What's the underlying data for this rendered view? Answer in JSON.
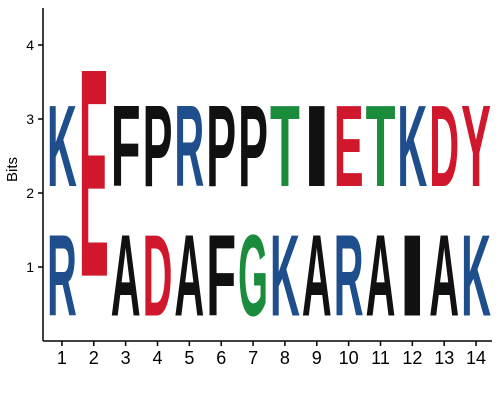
{
  "chart_data": {
    "type": "sequence-logo",
    "ylabel": "Bits",
    "ylim": [
      0,
      4.5
    ],
    "yticks": [
      1,
      2,
      3,
      4
    ],
    "positions": [
      1,
      2,
      3,
      4,
      5,
      6,
      7,
      8,
      9,
      10,
      11,
      12,
      13,
      14
    ],
    "colors": {
      "K": "#1f4e8c",
      "R": "#1f4e8c",
      "E": "#d0172c",
      "D": "#d0172c",
      "T": "#1a8c3c",
      "G": "#1a8c3c",
      "F": "#111111",
      "P": "#111111",
      "A": "#111111",
      "I": "#111111",
      "Y": "#d0172c"
    },
    "columns": [
      {
        "position": 1,
        "letters": [
          {
            "char": "R",
            "bits": 1.75
          },
          {
            "char": "K",
            "bits": 1.75
          }
        ]
      },
      {
        "position": 2,
        "letters": [
          {
            "char": "E",
            "bits": 4.5
          }
        ]
      },
      {
        "position": 3,
        "letters": [
          {
            "char": "A",
            "bits": 1.75
          },
          {
            "char": "F",
            "bits": 1.75
          }
        ]
      },
      {
        "position": 4,
        "letters": [
          {
            "char": "D",
            "bits": 1.75
          },
          {
            "char": "P",
            "bits": 1.75
          }
        ]
      },
      {
        "position": 5,
        "letters": [
          {
            "char": "A",
            "bits": 1.75
          },
          {
            "char": "R",
            "bits": 1.75
          }
        ]
      },
      {
        "position": 6,
        "letters": [
          {
            "char": "F",
            "bits": 1.75
          },
          {
            "char": "P",
            "bits": 1.75
          }
        ]
      },
      {
        "position": 7,
        "letters": [
          {
            "char": "G",
            "bits": 1.75
          },
          {
            "char": "P",
            "bits": 1.75
          }
        ]
      },
      {
        "position": 8,
        "letters": [
          {
            "char": "K",
            "bits": 1.75
          },
          {
            "char": "T",
            "bits": 1.75
          }
        ]
      },
      {
        "position": 9,
        "letters": [
          {
            "char": "A",
            "bits": 1.75
          },
          {
            "char": "I",
            "bits": 1.75
          }
        ]
      },
      {
        "position": 10,
        "letters": [
          {
            "char": "R",
            "bits": 1.75
          },
          {
            "char": "E",
            "bits": 1.75
          }
        ]
      },
      {
        "position": 11,
        "letters": [
          {
            "char": "A",
            "bits": 1.75
          },
          {
            "char": "T",
            "bits": 1.75
          }
        ]
      },
      {
        "position": 12,
        "letters": [
          {
            "char": "I",
            "bits": 1.75
          },
          {
            "char": "K",
            "bits": 1.75
          }
        ]
      },
      {
        "position": 13,
        "letters": [
          {
            "char": "A",
            "bits": 1.75
          },
          {
            "char": "D",
            "bits": 1.75
          }
        ]
      },
      {
        "position": 14,
        "letters": [
          {
            "char": "K",
            "bits": 1.75
          },
          {
            "char": "Y",
            "bits": 1.75
          }
        ]
      }
    ]
  }
}
